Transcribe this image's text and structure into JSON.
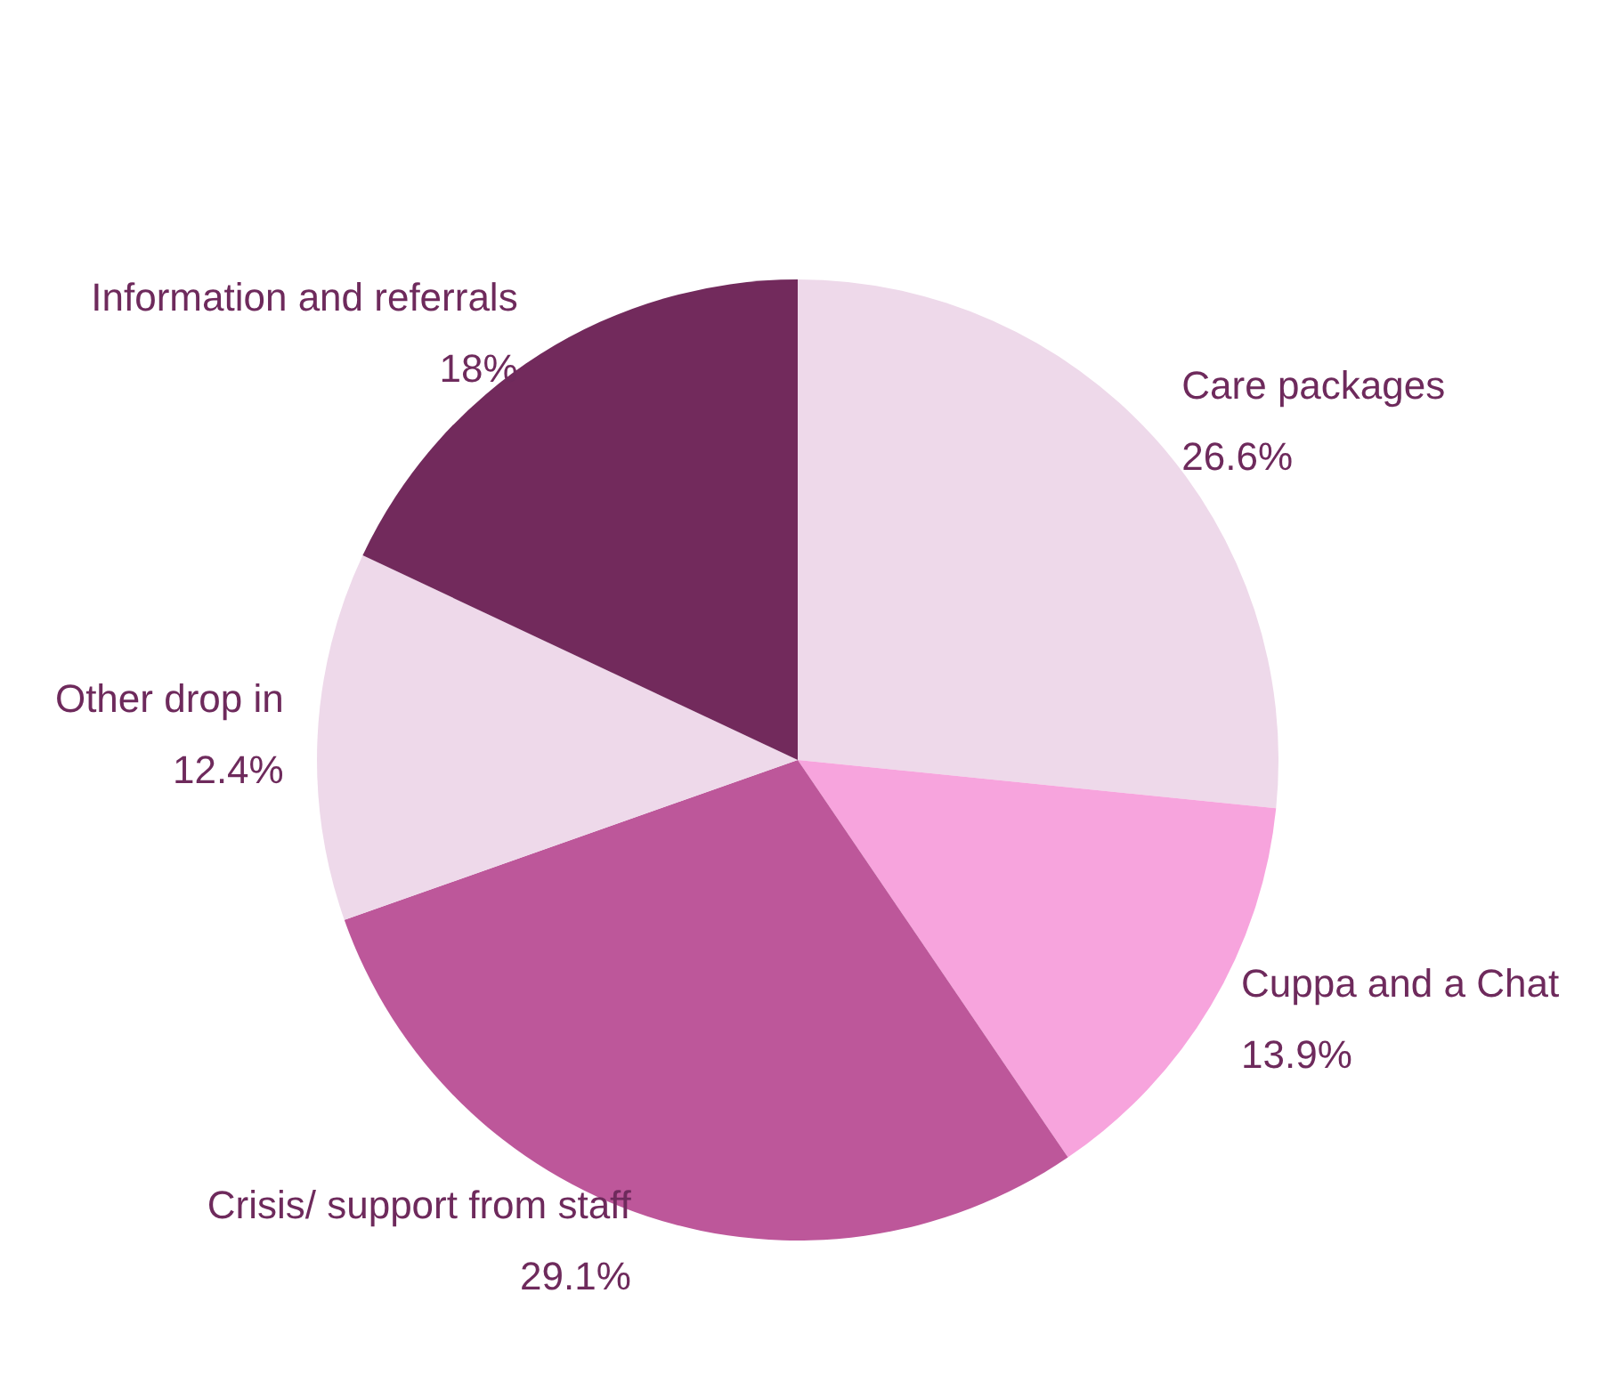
{
  "chart_data": {
    "type": "pie",
    "categories": [
      "Care packages",
      "Cuppa and a Chat",
      "Crisis/ support from staff",
      "Other drop in",
      "Information and referrals"
    ],
    "values": [
      26.6,
      13.9,
      29.1,
      12.4,
      18
    ],
    "value_labels": [
      "26.6%",
      "13.9%",
      "29.1%",
      "12.4%",
      "18%"
    ],
    "colors": [
      "#eed9ea",
      "#f7a4dd",
      "#bd579a",
      "#eed9ea",
      "#722a5c"
    ],
    "legend": false
  }
}
